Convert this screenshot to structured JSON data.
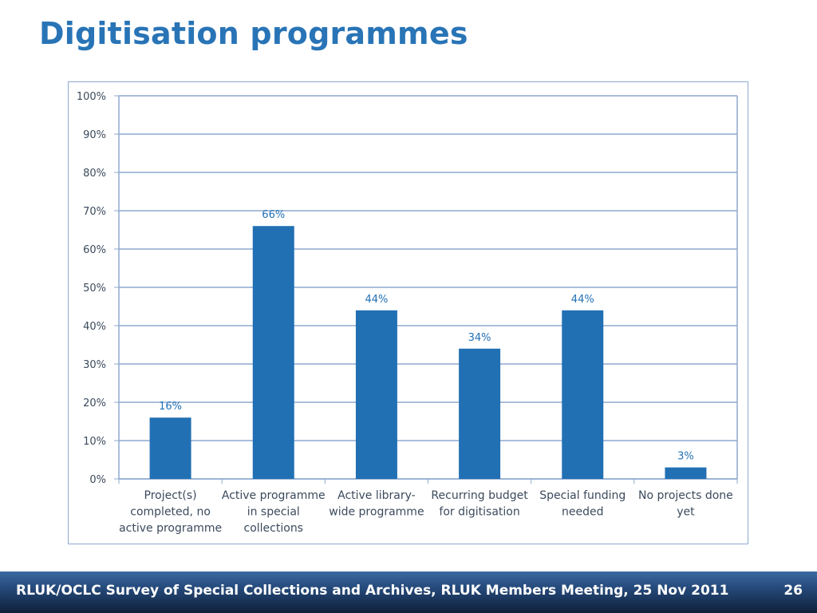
{
  "slide": {
    "title": "Digitisation programmes"
  },
  "footer": {
    "text": "RLUK/OCLC Survey of Special Collections and Archives, RLUK Members Meeting, 25 Nov 2011",
    "page_number": "26"
  },
  "chart_data": {
    "type": "bar",
    "title": "",
    "xlabel": "",
    "ylabel": "",
    "categories": [
      [
        "Project(s)",
        "completed, no",
        "active programme"
      ],
      [
        "Active programme",
        "in special",
        "collections"
      ],
      [
        "Active library-",
        "wide programme"
      ],
      [
        "Recurring budget",
        "for digitisation"
      ],
      [
        "Special funding",
        "needed"
      ],
      [
        "No projects done",
        "yet"
      ]
    ],
    "values": [
      16,
      66,
      44,
      34,
      44,
      3
    ],
    "data_labels": [
      "16%",
      "66%",
      "44%",
      "34%",
      "44%",
      "3%"
    ],
    "ylim": [
      0,
      100
    ],
    "yticks": [
      0,
      10,
      20,
      30,
      40,
      50,
      60,
      70,
      80,
      90,
      100
    ],
    "ytick_labels": [
      "0%",
      "10%",
      "20%",
      "30%",
      "40%",
      "50%",
      "60%",
      "70%",
      "80%",
      "90%",
      "100%"
    ],
    "grid": true,
    "legend": "none",
    "bar_color": "#2270b4",
    "grid_color": "#8ea9cf",
    "label_color": "#3b4a5c"
  }
}
